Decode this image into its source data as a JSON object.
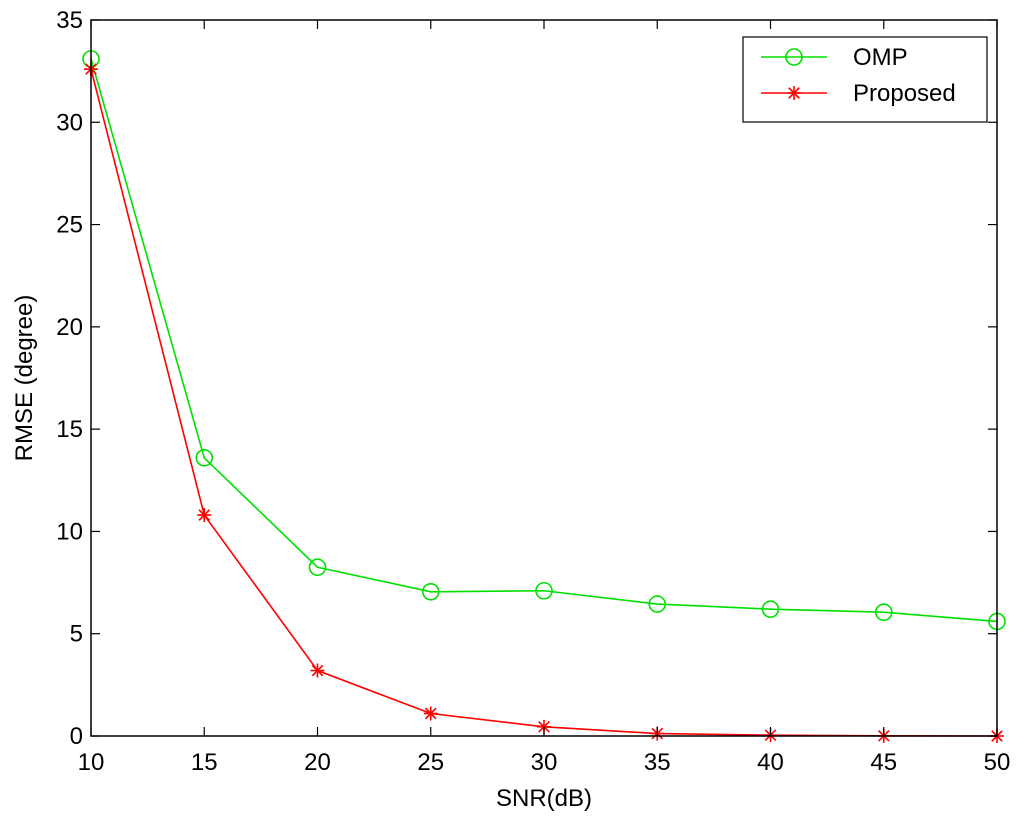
{
  "chart_data": {
    "type": "line",
    "title": "",
    "xlabel": "SNR(dB)",
    "ylabel": "RMSE (degree)",
    "xlim": [
      10,
      50
    ],
    "ylim": [
      0,
      35
    ],
    "x": [
      10,
      15,
      20,
      25,
      30,
      35,
      40,
      45,
      50
    ],
    "xticks": [
      "10",
      "15",
      "20",
      "25",
      "30",
      "35",
      "40",
      "45",
      "50"
    ],
    "yticks": [
      "0",
      "5",
      "10",
      "15",
      "20",
      "25",
      "30",
      "35"
    ],
    "grid": false,
    "legend_position": "top-right",
    "series": [
      {
        "name": "OMP",
        "color": "#00e000",
        "marker": "circle",
        "values": [
          33.1,
          13.6,
          8.25,
          7.05,
          7.1,
          6.45,
          6.2,
          6.05,
          5.6
        ]
      },
      {
        "name": "Proposed",
        "color": "#ff0000",
        "marker": "asterisk",
        "values": [
          32.6,
          10.8,
          3.2,
          1.1,
          0.45,
          0.12,
          0.04,
          0.01,
          0.0
        ]
      }
    ]
  }
}
